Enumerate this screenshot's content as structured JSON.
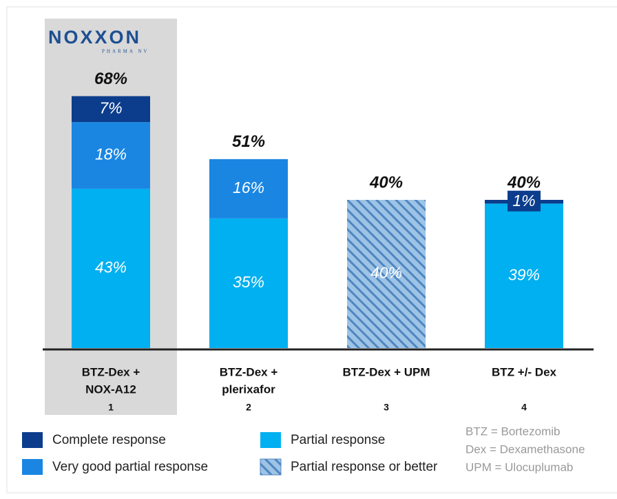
{
  "logo": {
    "name": "NOXXON",
    "sub": "PHARMA NV"
  },
  "chart_data": {
    "type": "stacked_bar",
    "categories": [
      [
        "BTZ-Dex +",
        "NOX-A12"
      ],
      [
        "BTZ-Dex +",
        "plerixafor"
      ],
      [
        "BTZ-Dex + UPM"
      ],
      [
        "BTZ +/- Dex"
      ]
    ],
    "group_numbers": [
      1,
      2,
      3,
      4
    ],
    "series": [
      {
        "name": "Complete  response",
        "color": "#0b3d8c",
        "values": [
          7,
          null,
          null,
          1
        ],
        "value_labels": [
          "7%",
          null,
          null,
          "1%"
        ]
      },
      {
        "name": "Very good partial  response",
        "color": "#1a86e2",
        "values": [
          18,
          16,
          null,
          null
        ],
        "value_labels": [
          "18%",
          "16%",
          null,
          null
        ]
      },
      {
        "name": "Partial response",
        "color": "#00b0f0",
        "values": [
          43,
          35,
          null,
          39
        ],
        "value_labels": [
          "43%",
          "35%",
          null,
          "39%"
        ]
      },
      {
        "name": "Partial response  or better",
        "color": "#9dc3e6",
        "pattern": "hatch",
        "values": [
          null,
          null,
          40,
          null
        ],
        "value_labels": [
          null,
          null,
          "40%",
          null
        ]
      }
    ],
    "totals": {
      "values": [
        68,
        51,
        40,
        40
      ],
      "value_labels": [
        "68%",
        "51%",
        "40%",
        "40%"
      ]
    },
    "ylim": [
      0,
      80
    ],
    "highlight": 0,
    "notes": [
      "BTZ  = Bortezomib",
      "Dex  = Dexamethasone",
      "UPM = Ulocuplumab"
    ]
  }
}
